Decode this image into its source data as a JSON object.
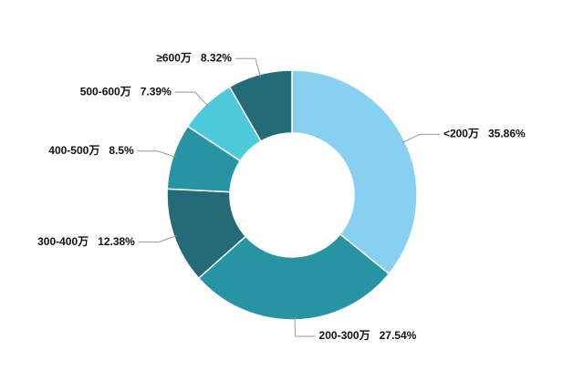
{
  "chart_data": {
    "type": "donut",
    "categories": [
      "<200万",
      "200-300万",
      "300-400万",
      "400-500万",
      "500-600万",
      "≥600万"
    ],
    "values": [
      35.86,
      27.54,
      12.38,
      8.5,
      7.39,
      8.32
    ],
    "value_labels": [
      "35.86%",
      "27.54%",
      "12.38%",
      "8.5%",
      "7.39%",
      "8.32%"
    ],
    "colors": [
      "#87d0f0",
      "#2794a3",
      "#246a77",
      "#2794a3",
      "#4dcad9",
      "#246a77"
    ]
  }
}
